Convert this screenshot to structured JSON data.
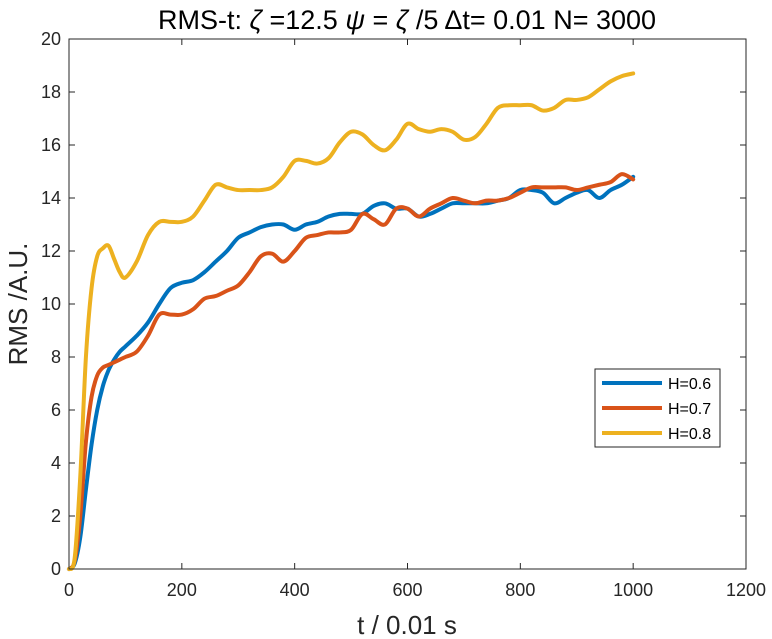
{
  "chart_data": {
    "type": "line",
    "title_parts": {
      "prefix": "RMS-t: ",
      "zeta": "ζ",
      "zeta_value": "=12.5 ",
      "psi": "ψ",
      "psi_value": "=",
      "psi_zeta": "ζ",
      "psi_rest": "/5 Δt= 0.01 N= 3000"
    },
    "xlabel": "t / 0.01 s",
    "ylabel": "RMS /A.U.",
    "xlim": [
      0,
      1200
    ],
    "ylim": [
      0,
      20
    ],
    "xticks": [
      0,
      200,
      400,
      600,
      800,
      1000,
      1200
    ],
    "yticks": [
      0,
      2,
      4,
      6,
      8,
      10,
      12,
      14,
      16,
      18,
      20
    ],
    "grid": false,
    "legend_position": "right, lower-middle",
    "series": [
      {
        "name": "H=0.6",
        "color": "#0072BD",
        "x": [
          0,
          10,
          20,
          30,
          40,
          50,
          60,
          70,
          80,
          90,
          100,
          120,
          140,
          160,
          180,
          200,
          220,
          240,
          260,
          280,
          300,
          320,
          340,
          360,
          380,
          400,
          420,
          440,
          460,
          480,
          500,
          520,
          540,
          560,
          580,
          600,
          620,
          640,
          660,
          680,
          700,
          720,
          740,
          760,
          780,
          800,
          820,
          840,
          860,
          880,
          900,
          920,
          940,
          960,
          980,
          1000
        ],
        "y": [
          0,
          0.2,
          1.2,
          3.0,
          4.7,
          6.0,
          6.9,
          7.5,
          7.9,
          8.2,
          8.4,
          8.8,
          9.3,
          10.0,
          10.6,
          10.8,
          10.9,
          11.2,
          11.6,
          12.0,
          12.5,
          12.7,
          12.9,
          13.0,
          13.0,
          12.8,
          13.0,
          13.1,
          13.3,
          13.4,
          13.4,
          13.4,
          13.7,
          13.8,
          13.6,
          13.6,
          13.3,
          13.4,
          13.6,
          13.8,
          13.8,
          13.8,
          13.8,
          13.9,
          14.0,
          14.3,
          14.3,
          14.2,
          13.8,
          14.0,
          14.2,
          14.3,
          14.0,
          14.3,
          14.5,
          14.8
        ]
      },
      {
        "name": "H=0.7",
        "color": "#D95319",
        "x": [
          0,
          10,
          20,
          30,
          40,
          50,
          60,
          70,
          80,
          90,
          100,
          120,
          140,
          160,
          180,
          200,
          220,
          240,
          260,
          280,
          300,
          320,
          340,
          360,
          380,
          400,
          420,
          440,
          460,
          480,
          500,
          520,
          540,
          560,
          580,
          600,
          620,
          640,
          660,
          680,
          700,
          720,
          740,
          760,
          780,
          800,
          820,
          840,
          860,
          880,
          900,
          920,
          940,
          960,
          980,
          1000
        ],
        "y": [
          0,
          0.3,
          2.0,
          4.8,
          6.5,
          7.3,
          7.6,
          7.7,
          7.8,
          7.9,
          8.0,
          8.2,
          8.8,
          9.6,
          9.6,
          9.6,
          9.8,
          10.2,
          10.3,
          10.5,
          10.7,
          11.2,
          11.8,
          11.9,
          11.6,
          12.0,
          12.5,
          12.6,
          12.7,
          12.7,
          12.8,
          13.4,
          13.2,
          13.0,
          13.6,
          13.6,
          13.3,
          13.6,
          13.8,
          14.0,
          13.9,
          13.8,
          13.9,
          13.9,
          14.0,
          14.2,
          14.4,
          14.4,
          14.4,
          14.4,
          14.3,
          14.4,
          14.5,
          14.6,
          14.9,
          14.7
        ]
      },
      {
        "name": "H=0.8",
        "color": "#EDB120",
        "x": [
          0,
          10,
          20,
          30,
          40,
          50,
          60,
          70,
          80,
          90,
          100,
          120,
          140,
          160,
          180,
          200,
          220,
          240,
          260,
          280,
          300,
          320,
          340,
          360,
          380,
          400,
          420,
          440,
          460,
          480,
          500,
          520,
          540,
          560,
          580,
          600,
          620,
          640,
          660,
          680,
          700,
          720,
          740,
          760,
          780,
          800,
          820,
          840,
          860,
          880,
          900,
          920,
          940,
          960,
          980,
          1000
        ],
        "y": [
          0,
          0.4,
          3.5,
          8.0,
          10.6,
          11.8,
          12.1,
          12.2,
          11.7,
          11.2,
          11.0,
          11.6,
          12.6,
          13.1,
          13.1,
          13.1,
          13.3,
          13.9,
          14.5,
          14.4,
          14.3,
          14.3,
          14.3,
          14.4,
          14.8,
          15.4,
          15.4,
          15.3,
          15.5,
          16.1,
          16.5,
          16.4,
          16.0,
          15.8,
          16.2,
          16.8,
          16.6,
          16.5,
          16.6,
          16.5,
          16.2,
          16.3,
          16.8,
          17.4,
          17.5,
          17.5,
          17.5,
          17.3,
          17.4,
          17.7,
          17.7,
          17.8,
          18.1,
          18.4,
          18.6,
          18.7
        ]
      }
    ]
  }
}
